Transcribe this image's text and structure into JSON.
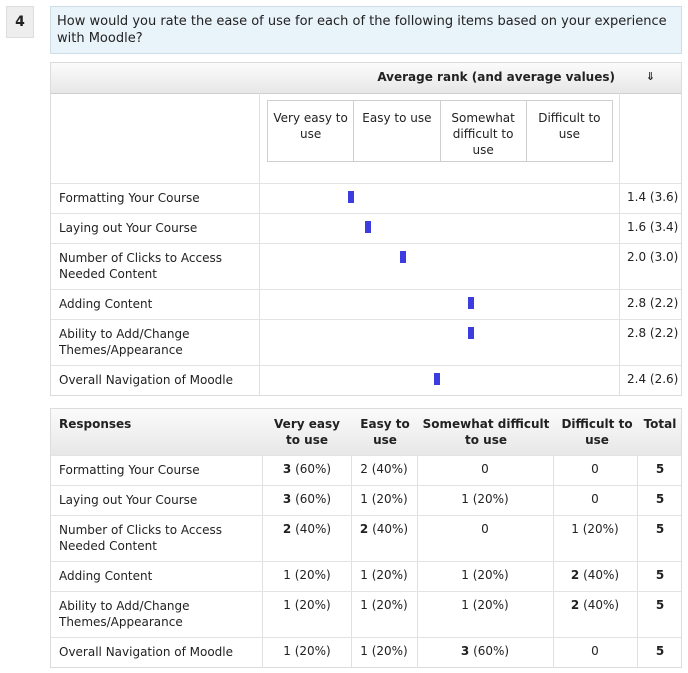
{
  "question": {
    "number": "4",
    "text": "How would you rate the ease of use for each of the following items based on your experience with Moodle?"
  },
  "rank_table": {
    "header_title": "Average rank (and average values)",
    "sort_icon": "⇓",
    "scale": [
      "Very easy to use",
      "Easy to use",
      "Somewhat difficult to use",
      "Difficult to use"
    ],
    "rows": [
      {
        "label": "Formatting Your Course",
        "value": "1.4 (3.6)",
        "rank": 1.4
      },
      {
        "label": "Laying out Your Course",
        "value": "1.6 (3.4)",
        "rank": 1.6
      },
      {
        "label": "Number of Clicks to Access Needed Content",
        "value": "2.0 (3.0)",
        "rank": 2.0
      },
      {
        "label": "Adding Content",
        "value": "2.8 (2.2)",
        "rank": 2.8
      },
      {
        "label": "Ability to Add/Change Themes/Appearance",
        "value": "2.8 (2.2)",
        "rank": 2.8
      },
      {
        "label": "Overall Navigation of Moodle",
        "value": "2.4 (2.6)",
        "rank": 2.4
      }
    ]
  },
  "responses_table": {
    "headers": [
      "Responses",
      "Very easy to use",
      "Easy to use",
      "Somewhat difficult to use",
      "Difficult to use",
      "Total"
    ],
    "rows": [
      {
        "label": "Formatting Your Course",
        "cells": [
          [
            "3",
            " (60%)"
          ],
          [
            "2",
            " (40%)"
          ],
          [
            "0",
            ""
          ],
          [
            "0",
            ""
          ]
        ],
        "bold": [
          true,
          false,
          false,
          false
        ],
        "total": "5"
      },
      {
        "label": "Laying out Your Course",
        "cells": [
          [
            "3",
            " (60%)"
          ],
          [
            "1",
            " (20%)"
          ],
          [
            "1",
            " (20%)"
          ],
          [
            "0",
            ""
          ]
        ],
        "bold": [
          true,
          false,
          false,
          false
        ],
        "total": "5"
      },
      {
        "label": "Number of Clicks to Access Needed Content",
        "cells": [
          [
            "2",
            " (40%)"
          ],
          [
            "2",
            " (40%)"
          ],
          [
            "0",
            ""
          ],
          [
            "1",
            " (20%)"
          ]
        ],
        "bold": [
          true,
          true,
          false,
          false
        ],
        "total": "5"
      },
      {
        "label": "Adding Content",
        "cells": [
          [
            "1",
            " (20%)"
          ],
          [
            "1",
            " (20%)"
          ],
          [
            "1",
            " (20%)"
          ],
          [
            "2",
            " (40%)"
          ]
        ],
        "bold": [
          false,
          false,
          false,
          true
        ],
        "total": "5"
      },
      {
        "label": "Ability to Add/Change Themes/Appearance",
        "cells": [
          [
            "1",
            " (20%)"
          ],
          [
            "1",
            " (20%)"
          ],
          [
            "1",
            " (20%)"
          ],
          [
            "2",
            " (40%)"
          ]
        ],
        "bold": [
          false,
          false,
          false,
          true
        ],
        "total": "5"
      },
      {
        "label": "Overall Navigation of Moodle",
        "cells": [
          [
            "1",
            " (20%)"
          ],
          [
            "1",
            " (20%)"
          ],
          [
            "3",
            " (60%)"
          ],
          [
            "0",
            ""
          ]
        ],
        "bold": [
          false,
          false,
          true,
          false
        ],
        "total": "5"
      }
    ]
  },
  "colors": {
    "marker": "#3c3ce0",
    "question_bg": "#e9f3fa"
  }
}
